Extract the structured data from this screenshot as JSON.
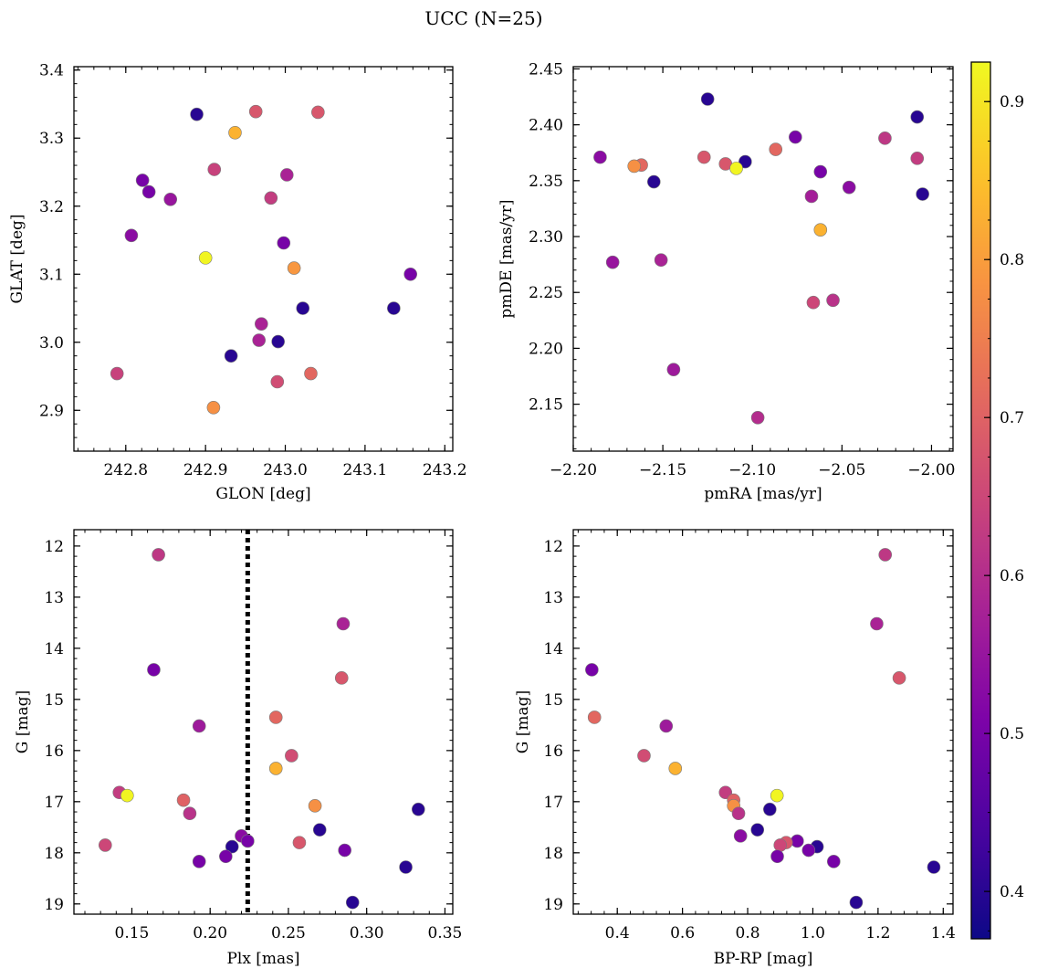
{
  "figure": {
    "title": "UCC (N=25)"
  },
  "colorbar": {
    "cmap": "plasma",
    "range": [
      0.37,
      0.925
    ],
    "ticks": [
      0.4,
      0.5,
      0.6,
      0.7,
      0.8,
      0.9
    ],
    "tick_labels": [
      "0.4",
      "0.5",
      "0.6",
      "0.7",
      "0.8",
      "0.9"
    ]
  },
  "chart_data": [
    {
      "type": "scatter",
      "id": "glon-glat",
      "xlabel": "GLON [deg]",
      "ylabel": "GLAT [deg]",
      "xlim": [
        242.735,
        243.21
      ],
      "ylim": [
        2.84,
        3.405
      ],
      "yinverted": false,
      "xticks": [
        242.8,
        242.9,
        243.0,
        243.1,
        243.2
      ],
      "xtick_labels": [
        "242.8",
        "242.9",
        "243.0",
        "243.1",
        "243.2"
      ],
      "yticks": [
        2.9,
        3.0,
        3.1,
        3.2,
        3.3,
        3.4
      ],
      "ytick_labels": [
        "2.9",
        "3.0",
        "3.1",
        "3.2",
        "3.3",
        "3.4"
      ],
      "grid": false,
      "points": [
        {
          "x": 242.889,
          "y": 3.335,
          "c": 0.4
        },
        {
          "x": 242.963,
          "y": 3.339,
          "c": 0.68
        },
        {
          "x": 243.041,
          "y": 3.338,
          "c": 0.68
        },
        {
          "x": 242.937,
          "y": 3.308,
          "c": 0.83
        },
        {
          "x": 242.911,
          "y": 3.254,
          "c": 0.64
        },
        {
          "x": 243.002,
          "y": 3.246,
          "c": 0.58
        },
        {
          "x": 242.821,
          "y": 3.238,
          "c": 0.5
        },
        {
          "x": 242.829,
          "y": 3.221,
          "c": 0.5
        },
        {
          "x": 242.856,
          "y": 3.21,
          "c": 0.55
        },
        {
          "x": 242.982,
          "y": 3.212,
          "c": 0.63
        },
        {
          "x": 242.807,
          "y": 3.157,
          "c": 0.53
        },
        {
          "x": 242.998,
          "y": 3.146,
          "c": 0.5
        },
        {
          "x": 242.9,
          "y": 3.124,
          "c": 0.92
        },
        {
          "x": 243.011,
          "y": 3.109,
          "c": 0.79
        },
        {
          "x": 243.157,
          "y": 3.1,
          "c": 0.5
        },
        {
          "x": 243.022,
          "y": 3.05,
          "c": 0.4
        },
        {
          "x": 243.136,
          "y": 3.05,
          "c": 0.4
        },
        {
          "x": 242.97,
          "y": 3.027,
          "c": 0.58
        },
        {
          "x": 242.967,
          "y": 3.003,
          "c": 0.58
        },
        {
          "x": 242.991,
          "y": 3.001,
          "c": 0.4
        },
        {
          "x": 242.932,
          "y": 2.98,
          "c": 0.4
        },
        {
          "x": 242.789,
          "y": 2.954,
          "c": 0.64
        },
        {
          "x": 243.032,
          "y": 2.954,
          "c": 0.71
        },
        {
          "x": 242.99,
          "y": 2.942,
          "c": 0.66
        },
        {
          "x": 242.91,
          "y": 2.904,
          "c": 0.78
        }
      ]
    },
    {
      "type": "scatter",
      "id": "pmra-pmde",
      "xlabel": "pmRA [mas/yr]",
      "ylabel": "pmDE [mas/yr]",
      "xlim": [
        -2.2,
        -1.988
      ],
      "ylim": [
        2.108,
        2.452
      ],
      "yinverted": false,
      "xticks": [
        -2.2,
        -2.15,
        -2.1,
        -2.05,
        -2.0
      ],
      "xtick_labels": [
        "−2.20",
        "−2.15",
        "−2.10",
        "−2.05",
        "−2.00"
      ],
      "yticks": [
        2.15,
        2.2,
        2.25,
        2.3,
        2.35,
        2.4,
        2.45
      ],
      "ytick_labels": [
        "2.15",
        "2.20",
        "2.25",
        "2.30",
        "2.35",
        "2.40",
        "2.45"
      ],
      "grid": false,
      "points": [
        {
          "x": -2.125,
          "y": 2.423,
          "c": 0.4
        },
        {
          "x": -2.008,
          "y": 2.407,
          "c": 0.4
        },
        {
          "x": -2.076,
          "y": 2.389,
          "c": 0.5
        },
        {
          "x": -2.026,
          "y": 2.388,
          "c": 0.62
        },
        {
          "x": -2.087,
          "y": 2.378,
          "c": 0.71
        },
        {
          "x": -2.185,
          "y": 2.371,
          "c": 0.53
        },
        {
          "x": -2.127,
          "y": 2.371,
          "c": 0.68
        },
        {
          "x": -2.008,
          "y": 2.37,
          "c": 0.63
        },
        {
          "x": -2.104,
          "y": 2.367,
          "c": 0.4
        },
        {
          "x": -2.115,
          "y": 2.365,
          "c": 0.68
        },
        {
          "x": -2.162,
          "y": 2.364,
          "c": 0.71
        },
        {
          "x": -2.166,
          "y": 2.363,
          "c": 0.78
        },
        {
          "x": -2.109,
          "y": 2.361,
          "c": 0.92
        },
        {
          "x": -2.062,
          "y": 2.358,
          "c": 0.5
        },
        {
          "x": -2.155,
          "y": 2.349,
          "c": 0.4
        },
        {
          "x": -2.046,
          "y": 2.344,
          "c": 0.53
        },
        {
          "x": -2.067,
          "y": 2.336,
          "c": 0.57
        },
        {
          "x": -2.005,
          "y": 2.338,
          "c": 0.4
        },
        {
          "x": -2.062,
          "y": 2.306,
          "c": 0.83
        },
        {
          "x": -2.178,
          "y": 2.277,
          "c": 0.55
        },
        {
          "x": -2.151,
          "y": 2.279,
          "c": 0.58
        },
        {
          "x": -2.066,
          "y": 2.241,
          "c": 0.65
        },
        {
          "x": -2.055,
          "y": 2.243,
          "c": 0.61
        },
        {
          "x": -2.144,
          "y": 2.181,
          "c": 0.56
        },
        {
          "x": -2.097,
          "y": 2.138,
          "c": 0.6
        }
      ]
    },
    {
      "type": "scatter",
      "id": "plx-g",
      "xlabel": "Plx [mas]",
      "ylabel": "G [mag]",
      "xlim": [
        0.113,
        0.355
      ],
      "ylim": [
        11.68,
        19.2
      ],
      "yinverted": true,
      "xticks": [
        0.15,
        0.2,
        0.25,
        0.3,
        0.35
      ],
      "xtick_labels": [
        "0.15",
        "0.20",
        "0.25",
        "0.30",
        "0.35"
      ],
      "yticks": [
        12,
        13,
        14,
        15,
        16,
        17,
        18,
        19
      ],
      "ytick_labels": [
        "12",
        "13",
        "14",
        "15",
        "16",
        "17",
        "18",
        "19"
      ],
      "grid": false,
      "vline": {
        "x": 0.224,
        "style": "dotted",
        "color": "#000000"
      },
      "points": [
        {
          "x": 0.167,
          "y": 12.17,
          "c": 0.62
        },
        {
          "x": 0.285,
          "y": 13.52,
          "c": 0.58
        },
        {
          "x": 0.164,
          "y": 14.42,
          "c": 0.5
        },
        {
          "x": 0.284,
          "y": 14.58,
          "c": 0.68
        },
        {
          "x": 0.242,
          "y": 15.35,
          "c": 0.71
        },
        {
          "x": 0.193,
          "y": 15.52,
          "c": 0.56
        },
        {
          "x": 0.252,
          "y": 16.1,
          "c": 0.66
        },
        {
          "x": 0.242,
          "y": 16.35,
          "c": 0.83
        },
        {
          "x": 0.142,
          "y": 16.82,
          "c": 0.63
        },
        {
          "x": 0.147,
          "y": 16.88,
          "c": 0.92
        },
        {
          "x": 0.183,
          "y": 16.97,
          "c": 0.7
        },
        {
          "x": 0.267,
          "y": 17.08,
          "c": 0.78
        },
        {
          "x": 0.333,
          "y": 17.15,
          "c": 0.4
        },
        {
          "x": 0.187,
          "y": 17.23,
          "c": 0.61
        },
        {
          "x": 0.27,
          "y": 17.55,
          "c": 0.4
        },
        {
          "x": 0.22,
          "y": 17.67,
          "c": 0.53
        },
        {
          "x": 0.224,
          "y": 17.77,
          "c": 0.5
        },
        {
          "x": 0.257,
          "y": 17.8,
          "c": 0.68
        },
        {
          "x": 0.133,
          "y": 17.85,
          "c": 0.65
        },
        {
          "x": 0.214,
          "y": 17.88,
          "c": 0.4
        },
        {
          "x": 0.286,
          "y": 17.95,
          "c": 0.5
        },
        {
          "x": 0.21,
          "y": 18.07,
          "c": 0.5
        },
        {
          "x": 0.193,
          "y": 18.17,
          "c": 0.5
        },
        {
          "x": 0.325,
          "y": 18.28,
          "c": 0.4
        },
        {
          "x": 0.291,
          "y": 18.97,
          "c": 0.4
        }
      ]
    },
    {
      "type": "scatter",
      "id": "bprp-g",
      "xlabel": "BP-RP [mag]",
      "ylabel": "G [mag]",
      "xlim": [
        0.265,
        1.43
      ],
      "ylim": [
        11.68,
        19.2
      ],
      "yinverted": true,
      "xticks": [
        0.4,
        0.6,
        0.8,
        1.0,
        1.2,
        1.4
      ],
      "xtick_labels": [
        "0.4",
        "0.6",
        "0.8",
        "1.0",
        "1.2",
        "1.4"
      ],
      "yticks": [
        12,
        13,
        14,
        15,
        16,
        17,
        18,
        19
      ],
      "ytick_labels": [
        "12",
        "13",
        "14",
        "15",
        "16",
        "17",
        "18",
        "19"
      ],
      "grid": false,
      "points": [
        {
          "x": 1.222,
          "y": 12.17,
          "c": 0.62
        },
        {
          "x": 1.196,
          "y": 13.52,
          "c": 0.58
        },
        {
          "x": 0.322,
          "y": 14.42,
          "c": 0.5
        },
        {
          "x": 1.265,
          "y": 14.58,
          "c": 0.68
        },
        {
          "x": 0.33,
          "y": 15.35,
          "c": 0.71
        },
        {
          "x": 0.55,
          "y": 15.52,
          "c": 0.56
        },
        {
          "x": 0.482,
          "y": 16.1,
          "c": 0.66
        },
        {
          "x": 0.578,
          "y": 16.35,
          "c": 0.83
        },
        {
          "x": 0.732,
          "y": 16.82,
          "c": 0.63
        },
        {
          "x": 0.89,
          "y": 16.88,
          "c": 0.92
        },
        {
          "x": 0.757,
          "y": 16.97,
          "c": 0.7
        },
        {
          "x": 0.757,
          "y": 17.08,
          "c": 0.78
        },
        {
          "x": 0.868,
          "y": 17.15,
          "c": 0.4
        },
        {
          "x": 0.772,
          "y": 17.23,
          "c": 0.61
        },
        {
          "x": 0.83,
          "y": 17.55,
          "c": 0.4
        },
        {
          "x": 0.778,
          "y": 17.67,
          "c": 0.53
        },
        {
          "x": 0.952,
          "y": 17.77,
          "c": 0.5
        },
        {
          "x": 0.918,
          "y": 17.8,
          "c": 0.68
        },
        {
          "x": 0.9,
          "y": 17.85,
          "c": 0.65
        },
        {
          "x": 1.013,
          "y": 17.88,
          "c": 0.4
        },
        {
          "x": 0.987,
          "y": 17.95,
          "c": 0.5
        },
        {
          "x": 0.891,
          "y": 18.07,
          "c": 0.5
        },
        {
          "x": 1.064,
          "y": 18.17,
          "c": 0.5
        },
        {
          "x": 1.371,
          "y": 18.28,
          "c": 0.4
        },
        {
          "x": 1.133,
          "y": 18.97,
          "c": 0.4
        }
      ]
    }
  ]
}
